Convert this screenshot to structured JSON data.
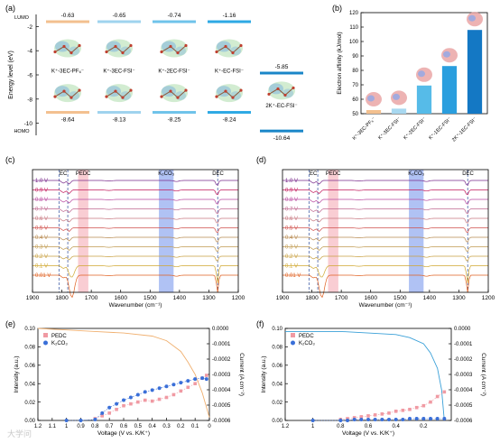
{
  "panel_labels": [
    "(a)",
    "(b)",
    "(c)",
    "(d)",
    "(e)",
    "(f)"
  ],
  "watermark": "大学问",
  "chart_data": [
    {
      "panel": "(a)",
      "type": "diagram",
      "ylabel": "Energy level (eV)",
      "ylim": [
        -11,
        -1
      ],
      "yticks": [
        "-2",
        "-4",
        "-6",
        "-8",
        "-10"
      ],
      "lumo_label": "LUMO",
      "homo_label": "HOMO",
      "columns": [
        {
          "label": "K⁺-3EC-PF₆⁻",
          "lumo": "-0.63",
          "homo": "-8.64",
          "lumo_value": -0.63,
          "homo_value": -8.64,
          "lumo_color": "#f3c08f",
          "homo_color": "#f3c08f"
        },
        {
          "label": "K⁺-3EC-FSI⁻",
          "lumo": "-0.65",
          "homo": "-8.13",
          "lumo_value": -0.65,
          "homo_value": -8.13,
          "lumo_color": "#9fd3ee",
          "homo_color": "#9fd3ee"
        },
        {
          "label": "K⁺-2EC-FSI⁻",
          "lumo": "-0.74",
          "homo": "-8.25",
          "lumo_value": -0.74,
          "homo_value": -8.25,
          "lumo_color": "#6fc3ea",
          "homo_color": "#6fc3ea"
        },
        {
          "label": "K⁺-EC-FSI⁻",
          "lumo": "-1.16",
          "homo": "-8.24",
          "lumo_value": -1.16,
          "homo_value": -8.24,
          "lumo_color": "#2ea9e4",
          "homo_color": "#2ea9e4"
        },
        {
          "label": "2K⁺-EC-FSI⁻",
          "lumo": "-5.85",
          "homo": "-10.64",
          "lumo_value": -5.85,
          "homo_value": -10.64,
          "lumo_color": "#1a86c8",
          "homo_color": "#1a86c8"
        }
      ]
    },
    {
      "panel": "(b)",
      "type": "bar",
      "ylabel": "Electron affinity (kJ/mol)",
      "ylim": [
        50,
        120
      ],
      "yticks": [
        50,
        60,
        70,
        80,
        90,
        100,
        110,
        120
      ],
      "categories": [
        "K⁺-3EC-PF₆⁻",
        "K⁺-3EC-FSI⁻",
        "K⁺-2EC-FSI⁻",
        "K⁺-1EC-FSI⁻",
        "2K⁺-1EC-FSI⁻"
      ],
      "values": [
        52.5,
        53.5,
        69.5,
        83,
        108
      ],
      "colors": [
        "#f3c08f",
        "#a8d8f0",
        "#56bbe8",
        "#2a9ede",
        "#1478c4"
      ]
    },
    {
      "panel": "(c)",
      "type": "line",
      "xlabel": "Wavenumber (cm⁻¹)",
      "xlim": [
        1900,
        1200
      ],
      "xticks": [
        1900,
        1800,
        1700,
        1600,
        1500,
        1400,
        1300,
        1200
      ],
      "voltages": [
        "1.0 V",
        "0.9 V",
        "0.8 V",
        "0.7 V",
        "0.6 V",
        "0.5 V",
        "0.4 V",
        "0.3 V",
        "0.2 V",
        "0.1 V",
        "0.01 V"
      ],
      "voltage_colors": [
        "#7a2b8c",
        "#c2185b",
        "#b94aa0",
        "#c06890",
        "#c87880",
        "#d0504c",
        "#b88a50",
        "#c09a50",
        "#c8a040",
        "#d0a830",
        "#e06020"
      ],
      "bands": [
        {
          "label": "EC",
          "from": 1810,
          "to": 1780,
          "kind": "dashed"
        },
        {
          "label": "PEDC",
          "from": 1745,
          "to": 1710,
          "kind": "pink"
        },
        {
          "label": "K₂CO₃",
          "from": 1470,
          "to": 1420,
          "kind": "blue"
        },
        {
          "label": "DEC",
          "from": 1270,
          "to": 1268,
          "kind": "dashed"
        }
      ]
    },
    {
      "panel": "(d)",
      "type": "line",
      "xlabel": "Wavenumber (cm⁻¹)",
      "xlim": [
        1900,
        1200
      ],
      "xticks": [
        1900,
        1800,
        1700,
        1600,
        1500,
        1400,
        1300,
        1200
      ],
      "voltages": [
        "1.0 V",
        "0.9 V",
        "0.8 V",
        "0.7 V",
        "0.6 V",
        "0.5 V",
        "0.4 V",
        "0.3 V",
        "0.2 V",
        "0.1 V",
        "0.01 V"
      ],
      "voltage_colors": [
        "#7a2b8c",
        "#c2185b",
        "#b94aa0",
        "#c06890",
        "#c87880",
        "#d0504c",
        "#b88a50",
        "#c09a50",
        "#c8a040",
        "#d0a830",
        "#e06020"
      ],
      "bands": [
        {
          "label": "EC",
          "from": 1810,
          "to": 1780,
          "kind": "dashed"
        },
        {
          "label": "PEDC",
          "from": 1745,
          "to": 1710,
          "kind": "pink"
        },
        {
          "label": "K₂CO₃",
          "from": 1470,
          "to": 1420,
          "kind": "blue"
        },
        {
          "label": "DEC",
          "from": 1270,
          "to": 1268,
          "kind": "dashed"
        }
      ]
    },
    {
      "panel": "(e)",
      "type": "scatter",
      "xlabel": "Voltage (V vs. K/K⁺)",
      "ylabel": "Intensity (a.u.)",
      "y2label": "Current (A cm⁻²)",
      "xlim": [
        1.2,
        0
      ],
      "xticks": [
        1.2,
        1.1,
        1.0,
        0.9,
        0.8,
        0.7,
        0.6,
        0.5,
        0.4,
        0.3,
        0.2,
        0.1,
        0.0
      ],
      "ylim": [
        0,
        0.1
      ],
      "yticks": [
        0.0,
        0.02,
        0.04,
        0.06,
        0.08,
        0.1
      ],
      "y2lim": [
        0,
        -0.0006
      ],
      "y2ticks": [
        "0.0000",
        "-0.0001",
        "-0.0002",
        "-0.0003",
        "-0.0004",
        "-0.0005",
        "-0.0006"
      ],
      "series": [
        {
          "name": "PEDC",
          "color": "#f09aa3",
          "x": [
            0.8,
            0.75,
            0.7,
            0.65,
            0.6,
            0.55,
            0.5,
            0.45,
            0.4,
            0.35,
            0.3,
            0.25,
            0.2,
            0.15,
            0.1,
            0.05,
            0.02
          ],
          "y": [
            0.002,
            0.005,
            0.008,
            0.012,
            0.016,
            0.018,
            0.02,
            0.022,
            0.021,
            0.023,
            0.025,
            0.028,
            0.032,
            0.036,
            0.04,
            0.046,
            0.049
          ]
        },
        {
          "name": "K₂CO₃",
          "color": "#3a6fd8",
          "x": [
            1.0,
            0.9,
            0.8,
            0.75,
            0.7,
            0.65,
            0.6,
            0.55,
            0.5,
            0.45,
            0.4,
            0.35,
            0.3,
            0.25,
            0.2,
            0.15,
            0.1,
            0.05,
            0.02
          ],
          "y": [
            0.0,
            0.0,
            0.001,
            0.008,
            0.014,
            0.018,
            0.022,
            0.025,
            0.028,
            0.031,
            0.033,
            0.035,
            0.037,
            0.039,
            0.041,
            0.043,
            0.045,
            0.046,
            0.045
          ]
        },
        {
          "name": "Current",
          "color": "#f0b070",
          "x": [
            1.2,
            1.0,
            0.8,
            0.6,
            0.4,
            0.3,
            0.2,
            0.15,
            0.1,
            0.05,
            0.0
          ],
          "y": [
            0.0,
            -1e-05,
            -2e-05,
            -3e-05,
            -5e-05,
            -8e-05,
            -0.00015,
            -0.00022,
            -0.0003,
            -0.00042,
            -0.00058
          ]
        }
      ],
      "legend": "top-left"
    },
    {
      "panel": "(f)",
      "type": "scatter",
      "xlabel": "Voltage (V vs. K/K⁺)",
      "ylabel": "Intensity (a.u.)",
      "y2label": "Current (A cm⁻²)",
      "xlim": [
        1.2,
        0
      ],
      "xticks": [
        1.2,
        1.0,
        0.8,
        0.6,
        0.4,
        0.2
      ],
      "ylim": [
        0,
        0.1
      ],
      "yticks": [
        0.0,
        0.02,
        0.04,
        0.06,
        0.08,
        0.1
      ],
      "y2lim": [
        0,
        -0.0006
      ],
      "y2ticks": [
        "0.0000",
        "-0.0001",
        "-0.0002",
        "-0.0003",
        "-0.0004",
        "-0.0005",
        "-0.0006"
      ],
      "series": [
        {
          "name": "PEDC",
          "color": "#f09aa3",
          "x": [
            0.8,
            0.75,
            0.7,
            0.65,
            0.6,
            0.55,
            0.5,
            0.45,
            0.4,
            0.35,
            0.3,
            0.25,
            0.2,
            0.15,
            0.1,
            0.05
          ],
          "y": [
            0.001,
            0.002,
            0.003,
            0.004,
            0.005,
            0.006,
            0.007,
            0.008,
            0.01,
            0.011,
            0.012,
            0.014,
            0.016,
            0.02,
            0.026,
            0.031
          ]
        },
        {
          "name": "K₂CO₃",
          "color": "#3a6fd8",
          "x": [
            1.0,
            0.8,
            0.75,
            0.7,
            0.65,
            0.6,
            0.55,
            0.5,
            0.45,
            0.4,
            0.35,
            0.3,
            0.25,
            0.2,
            0.15,
            0.1,
            0.05
          ],
          "y": [
            0.0,
            0.0,
            0.0,
            0.001,
            0.001,
            0.001,
            0.001,
            0.001,
            0.001,
            0.001,
            0.001,
            0.002,
            0.002,
            0.002,
            0.002,
            0.002,
            0.002
          ]
        },
        {
          "name": "Current",
          "color": "#3aa0d8",
          "x": [
            1.2,
            1.0,
            0.8,
            0.6,
            0.4,
            0.3,
            0.2,
            0.15,
            0.1,
            0.07,
            0.05
          ],
          "y": [
            -2e-05,
            -2e-05,
            -2e-05,
            -3e-05,
            -4e-05,
            -6e-05,
            -0.0001,
            -0.00016,
            -0.00026,
            -0.0004,
            -0.0006
          ]
        }
      ],
      "legend": "top-left"
    }
  ]
}
